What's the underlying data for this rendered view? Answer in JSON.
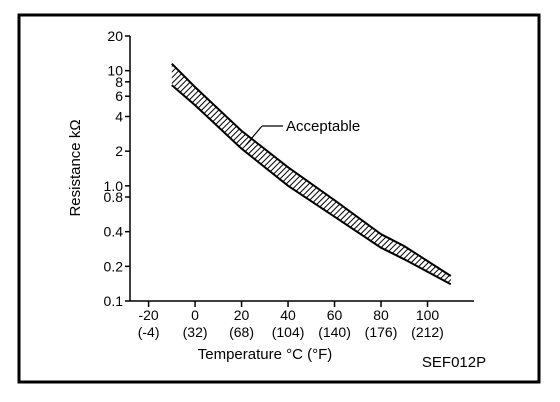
{
  "code": "SEF012P",
  "chart_data": {
    "type": "area",
    "xlabel": "Temperature °C (°F)",
    "ylabel": "Resistance  kΩ",
    "y_scale": "log",
    "xlim": [
      -28,
      120
    ],
    "ylim": [
      0.1,
      20
    ],
    "x_ticks": [
      {
        "c": "-20",
        "f": "(-4)"
      },
      {
        "c": "0",
        "f": "(32)"
      },
      {
        "c": "20",
        "f": "(68)"
      },
      {
        "c": "40",
        "f": "(104)"
      },
      {
        "c": "60",
        "f": "(140)"
      },
      {
        "c": "80",
        "f": "(176)"
      },
      {
        "c": "100",
        "f": "(212)"
      }
    ],
    "y_ticks": [
      "0.1",
      "0.2",
      "0.4",
      "0.8",
      "1.0",
      "2",
      "4",
      "6",
      "8",
      "10",
      "20"
    ],
    "annotation": "Acceptable",
    "series": [
      {
        "x": [
          -10,
          0,
          20,
          40,
          60,
          80,
          90,
          110
        ],
        "y": [
          11.5,
          7.2,
          3.0,
          1.45,
          0.75,
          0.38,
          0.3,
          0.165
        ]
      },
      {
        "x": [
          -10,
          0,
          20,
          40,
          60,
          80,
          90,
          110
        ],
        "y": [
          7.5,
          5.0,
          2.1,
          1.0,
          0.54,
          0.29,
          0.23,
          0.14
        ]
      }
    ]
  }
}
